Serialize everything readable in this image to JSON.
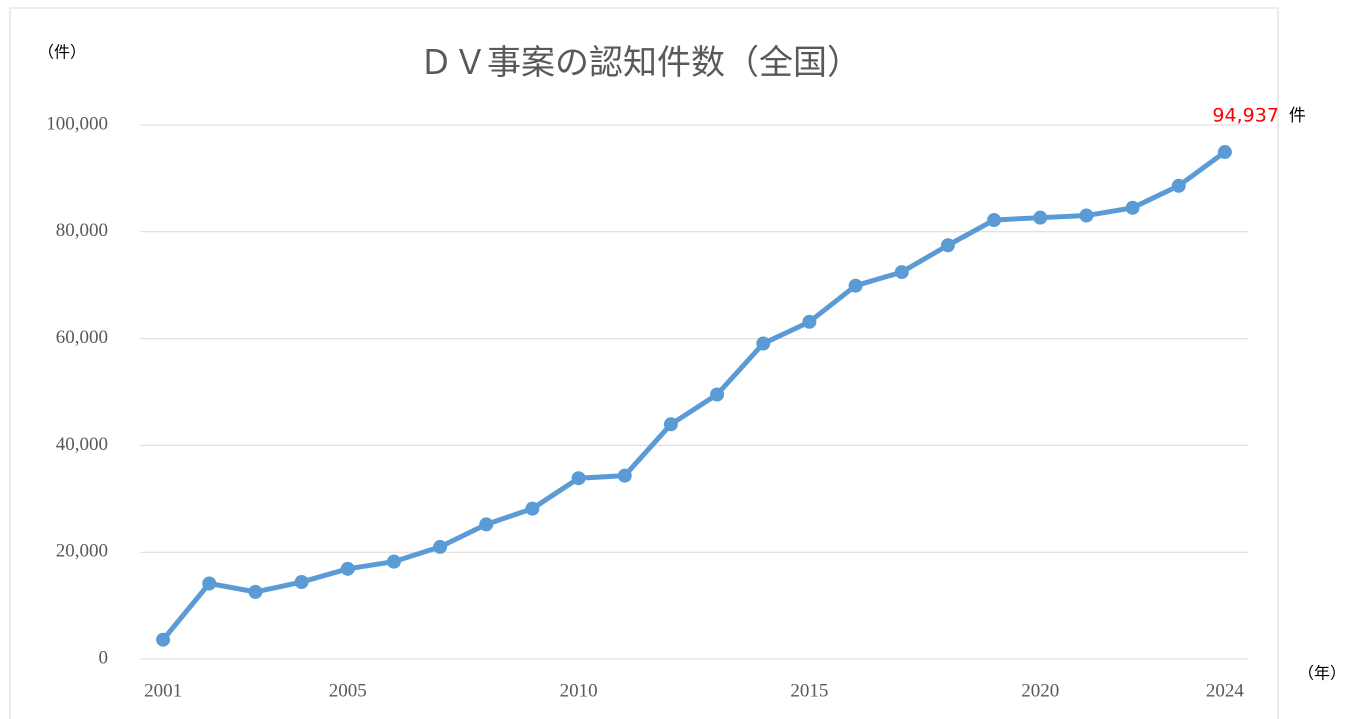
{
  "chart_data": {
    "type": "line",
    "title": "ＤＶ事案の認知件数（全国）",
    "y_label": "（件）",
    "x_label": "（年）",
    "x": [
      2001,
      2002,
      2003,
      2004,
      2005,
      2006,
      2007,
      2008,
      2009,
      2010,
      2011,
      2012,
      2013,
      2014,
      2015,
      2016,
      2017,
      2018,
      2019,
      2020,
      2021,
      2022,
      2023,
      2024
    ],
    "series": [
      {
        "name": "DV事案の認知件数",
        "color": "#5b9bd5",
        "values": [
          3608,
          14140,
          12568,
          14410,
          16888,
          18236,
          20992,
          25210,
          28158,
          33852,
          34329,
          43950,
          49533,
          59072,
          63141,
          69908,
          72455,
          77482,
          82207,
          82643,
          83042,
          84496,
          88619,
          94937
        ],
        "value_labels": [
          null,
          null,
          null,
          null,
          null,
          null,
          null,
          null,
          null,
          null,
          null,
          null,
          null,
          null,
          null,
          null,
          null,
          null,
          null,
          null,
          null,
          null,
          null,
          "94,937"
        ],
        "value_label_unit": "件",
        "value_label_color": "#ff0000"
      }
    ],
    "xlim": [
      2000.5,
      2024.5
    ],
    "xticks": [
      2001,
      2005,
      2010,
      2015,
      2020,
      2024
    ],
    "ylim": [
      0,
      100000
    ],
    "yticks": [
      0,
      {
        "value": 20000,
        "label": "20,000"
      },
      {
        "value": 40000,
        "label": "40,000"
      },
      {
        "value": 60000,
        "label": "60,000"
      },
      {
        "value": 80000,
        "label": "80,000"
      },
      {
        "value": 100000,
        "label": "100,000"
      }
    ],
    "grid": true
  }
}
